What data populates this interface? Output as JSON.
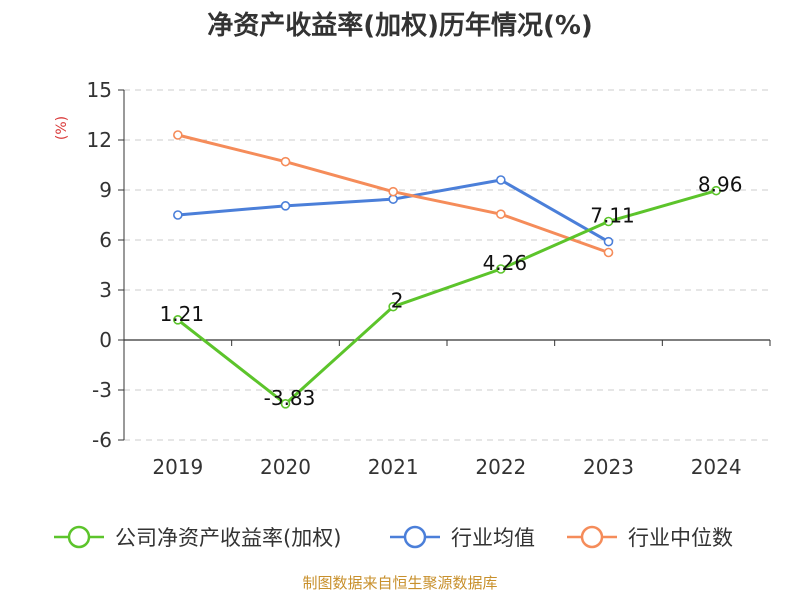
{
  "colors": {
    "title": "#333333",
    "axis": "#333333",
    "grid": "#cccccc",
    "source": "#c8902c",
    "ylabel": "#d93a3a"
  },
  "chart_data": {
    "type": "line",
    "title": "净资产收益率(加权)历年情况(%)",
    "ylabel": "(%)",
    "xlabel": "",
    "categories": [
      "2019",
      "2020",
      "2021",
      "2022",
      "2023",
      "2024"
    ],
    "ylim": [
      -6,
      15
    ],
    "yticks": [
      -6,
      -3,
      0,
      3,
      6,
      9,
      12,
      15
    ],
    "grid": true,
    "legend_position": "bottom",
    "series": [
      {
        "name": "公司净资产收益率(加权)",
        "color": "#5cc42b",
        "values": [
          1.21,
          -3.83,
          2,
          4.26,
          7.11,
          8.96
        ],
        "labels": [
          "1.21",
          "-3.83",
          "2",
          "4.26",
          "7.11",
          "8.96"
        ]
      },
      {
        "name": "行业均值",
        "color": "#4b7fd9",
        "values": [
          7.5,
          8.05,
          8.45,
          9.6,
          5.9,
          null
        ]
      },
      {
        "name": "行业中位数",
        "color": "#f58c5a",
        "values": [
          12.3,
          10.7,
          8.9,
          7.55,
          5.25,
          null
        ]
      }
    ]
  },
  "footer": {
    "source": "制图数据来自恒生聚源数据库"
  }
}
